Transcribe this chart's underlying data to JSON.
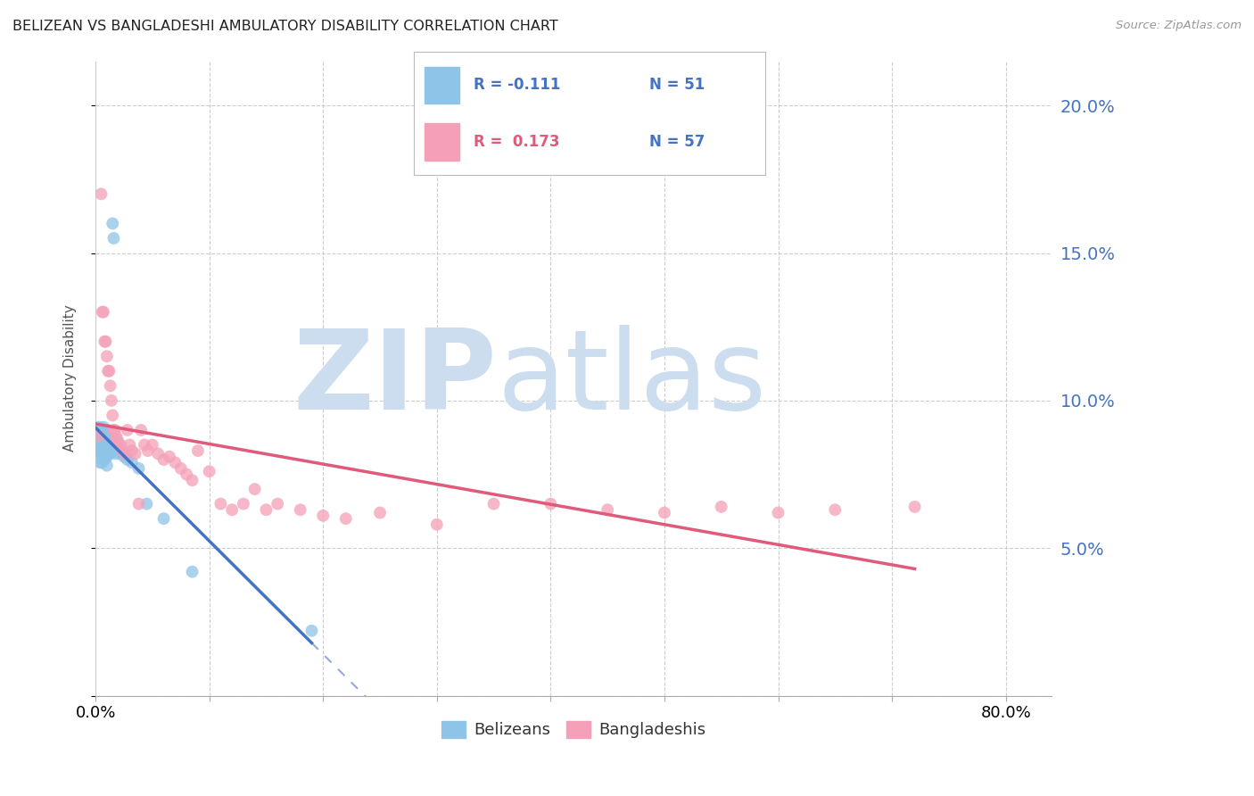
{
  "title": "BELIZEAN VS BANGLADESHI AMBULATORY DISABILITY CORRELATION CHART",
  "source": "Source: ZipAtlas.com",
  "ylabel": "Ambulatory Disability",
  "xlim": [
    0.0,
    0.84
  ],
  "ylim": [
    0.0,
    0.215
  ],
  "blue_color": "#8ec4e8",
  "pink_color": "#f4a0b8",
  "blue_line_color": "#4472c4",
  "pink_line_color": "#e05a7a",
  "grid_color": "#c8c8c8",
  "right_axis_color": "#4472c4",
  "blue_R": -0.111,
  "blue_N": 51,
  "pink_R": 0.173,
  "pink_N": 57,
  "belizean_x": [
    0.002,
    0.003,
    0.003,
    0.004,
    0.004,
    0.004,
    0.005,
    0.005,
    0.005,
    0.005,
    0.006,
    0.006,
    0.006,
    0.006,
    0.007,
    0.007,
    0.007,
    0.007,
    0.008,
    0.008,
    0.008,
    0.008,
    0.009,
    0.009,
    0.009,
    0.01,
    0.01,
    0.01,
    0.01,
    0.01,
    0.011,
    0.011,
    0.012,
    0.012,
    0.013,
    0.013,
    0.014,
    0.015,
    0.016,
    0.017,
    0.018,
    0.02,
    0.022,
    0.025,
    0.028,
    0.032,
    0.038,
    0.045,
    0.06,
    0.085,
    0.19
  ],
  "belizean_y": [
    0.083,
    0.091,
    0.088,
    0.087,
    0.082,
    0.079,
    0.085,
    0.09,
    0.088,
    0.083,
    0.087,
    0.085,
    0.083,
    0.079,
    0.091,
    0.086,
    0.083,
    0.08,
    0.09,
    0.086,
    0.083,
    0.08,
    0.089,
    0.085,
    0.082,
    0.088,
    0.085,
    0.083,
    0.081,
    0.078,
    0.09,
    0.083,
    0.087,
    0.082,
    0.086,
    0.082,
    0.083,
    0.16,
    0.155,
    0.085,
    0.082,
    0.084,
    0.082,
    0.081,
    0.08,
    0.079,
    0.077,
    0.065,
    0.06,
    0.042,
    0.022
  ],
  "bangladeshi_x": [
    0.003,
    0.005,
    0.006,
    0.007,
    0.008,
    0.009,
    0.01,
    0.011,
    0.012,
    0.013,
    0.014,
    0.015,
    0.016,
    0.017,
    0.018,
    0.019,
    0.02,
    0.022,
    0.024,
    0.026,
    0.028,
    0.03,
    0.032,
    0.035,
    0.038,
    0.04,
    0.043,
    0.046,
    0.05,
    0.055,
    0.06,
    0.065,
    0.07,
    0.075,
    0.08,
    0.085,
    0.09,
    0.1,
    0.11,
    0.12,
    0.13,
    0.14,
    0.15,
    0.16,
    0.18,
    0.2,
    0.22,
    0.25,
    0.3,
    0.35,
    0.4,
    0.45,
    0.5,
    0.55,
    0.6,
    0.65,
    0.72
  ],
  "bangladeshi_y": [
    0.088,
    0.17,
    0.13,
    0.13,
    0.12,
    0.12,
    0.115,
    0.11,
    0.11,
    0.105,
    0.1,
    0.095,
    0.09,
    0.09,
    0.088,
    0.087,
    0.086,
    0.085,
    0.083,
    0.082,
    0.09,
    0.085,
    0.083,
    0.082,
    0.065,
    0.09,
    0.085,
    0.083,
    0.085,
    0.082,
    0.08,
    0.081,
    0.079,
    0.077,
    0.075,
    0.073,
    0.083,
    0.076,
    0.065,
    0.063,
    0.065,
    0.07,
    0.063,
    0.065,
    0.063,
    0.061,
    0.06,
    0.062,
    0.058,
    0.065,
    0.065,
    0.063,
    0.062,
    0.064,
    0.062,
    0.063,
    0.064
  ],
  "watermark": "ZIPatlas",
  "watermark_color": "#ccddf0",
  "background_color": "#ffffff",
  "title_fontsize": 11.5,
  "ylabel_fontsize": 11
}
